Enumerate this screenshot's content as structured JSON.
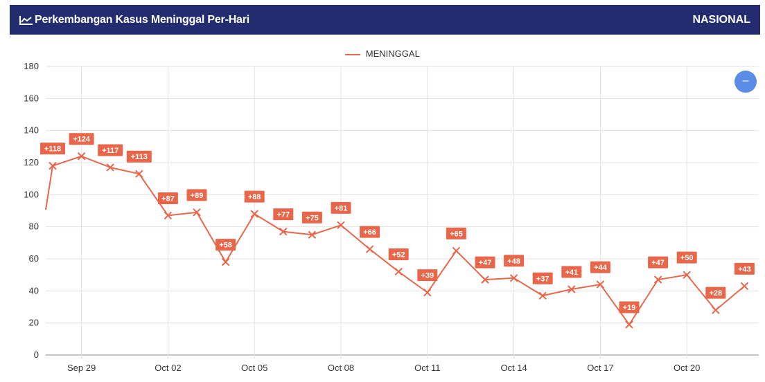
{
  "header": {
    "title": "Perkembangan Kasus Meninggal Per-Hari",
    "scope": "NASIONAL",
    "icon": "line-chart-icon",
    "background": "#232c6e"
  },
  "zoom_button": {
    "icon": "minus-icon",
    "label": "–",
    "color": "#5b8de6"
  },
  "chart_data": {
    "type": "line",
    "series": [
      {
        "name": "MENINGGAL",
        "color": "#e8674b",
        "values": [
          118,
          124,
          117,
          113,
          87,
          89,
          58,
          88,
          77,
          75,
          81,
          66,
          52,
          39,
          65,
          47,
          48,
          37,
          41,
          44,
          19,
          47,
          50,
          28,
          43
        ],
        "labels": [
          "+118",
          "+124",
          "+117",
          "+113",
          "+87",
          "+89",
          "+58",
          "+88",
          "+77",
          "+75",
          "+81",
          "+66",
          "+52",
          "+39",
          "+65",
          "+47",
          "+48",
          "+37",
          "+41",
          "+44",
          "+19",
          "+47",
          "+50",
          "+28",
          "+43"
        ]
      }
    ],
    "x_ticks": [
      "Sep 29",
      "Oct 02",
      "Oct 05",
      "Oct 08",
      "Oct 11",
      "Oct 14",
      "Oct 17",
      "Oct 20"
    ],
    "y_ticks": [
      "0",
      "20",
      "40",
      "60",
      "80",
      "100",
      "120",
      "140",
      "160",
      "180"
    ],
    "ylim": [
      0,
      180
    ],
    "grid": true,
    "legend_position": "top-center"
  }
}
